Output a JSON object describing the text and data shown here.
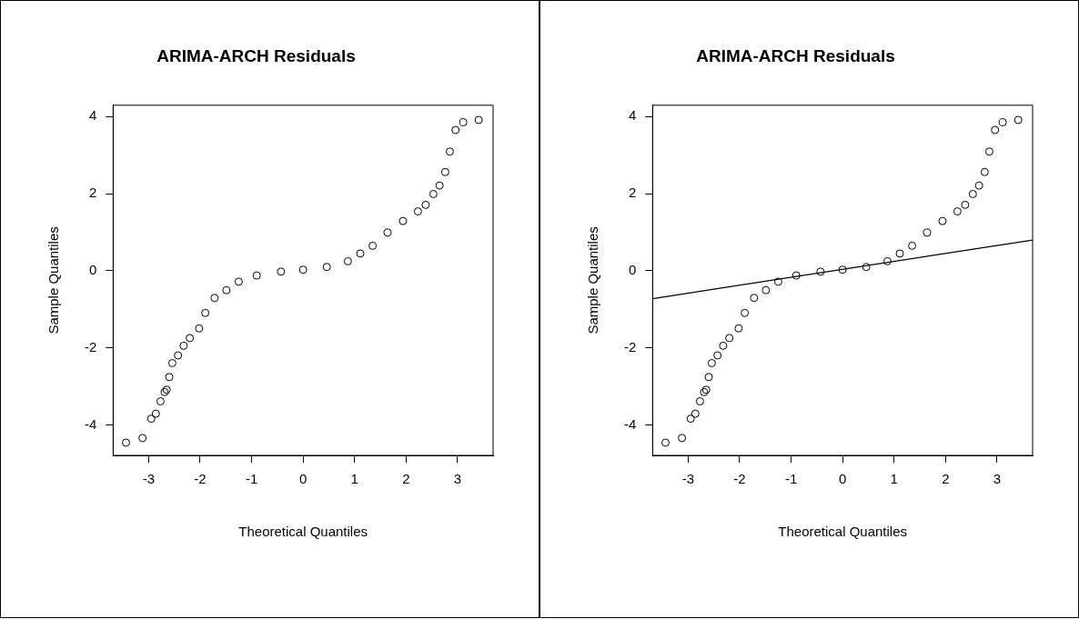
{
  "chart_data": [
    {
      "type": "scatter",
      "title": "ARIMA-ARCH Residuals",
      "xlabel": "Theoretical Quantiles",
      "ylabel": "Sample Quantiles",
      "color": "#000000",
      "marker": "circle",
      "grid": false,
      "legend": false,
      "x": [
        -3.44,
        -3.12,
        -2.95,
        -2.86,
        -2.77,
        -2.69,
        -2.65,
        -2.6,
        -2.54,
        -2.43,
        -2.32,
        -2.2,
        -2.02,
        -1.9,
        -1.72,
        -1.49,
        -1.25,
        -0.9,
        -0.43,
        0,
        0.46,
        0.87,
        1.11,
        1.35,
        1.64,
        1.94,
        2.23,
        2.38,
        2.53,
        2.65,
        2.76,
        2.85,
        2.96,
        3.11,
        3.41
      ],
      "values": [
        -4.45,
        -4.33,
        -3.83,
        -3.7,
        -3.38,
        -3.14,
        -3.08,
        -2.75,
        -2.39,
        -2.19,
        -1.94,
        -1.74,
        -1.49,
        -1.09,
        -0.7,
        -0.5,
        -0.28,
        -0.12,
        -0.02,
        0.03,
        0.1,
        0.25,
        0.45,
        0.65,
        0.99,
        1.29,
        1.54,
        1.71,
        1.99,
        2.21,
        2.56,
        3.09,
        3.65,
        3.85,
        3.91
      ],
      "xlim": [
        -3.69,
        3.69
      ],
      "ylim": [
        -4.78,
        4.29
      ],
      "xticks": [
        -3,
        -2,
        -1,
        0,
        1,
        2,
        3
      ],
      "yticks": [
        -4,
        -2,
        0,
        2,
        4
      ]
    },
    {
      "type": "scatter",
      "title": "ARIMA-ARCH Residuals",
      "xlabel": "Theoretical Quantiles",
      "ylabel": "Sample Quantiles",
      "marker": "circle",
      "grid": false,
      "legend": false,
      "series": [
        {
          "color": "#000000",
          "x": [
            -3.44,
            -3.12,
            -2.95,
            -2.86,
            -2.77,
            -2.69,
            -2.65,
            -2.6,
            -2.54,
            -2.43,
            -2.32,
            -2.2,
            -2.02,
            -1.9,
            -1.72,
            -1.49,
            -1.25,
            -0.9,
            -0.43,
            0,
            0.46,
            0.87,
            1.11,
            1.35,
            1.64,
            1.94,
            2.23,
            2.38,
            2.53,
            2.65,
            2.76,
            2.85,
            2.96,
            3.11,
            3.41
          ],
          "values": [
            -4.45,
            -4.33,
            -3.83,
            -3.7,
            -3.38,
            -3.14,
            -3.08,
            -2.75,
            -2.39,
            -2.19,
            -1.94,
            -1.74,
            -1.49,
            -1.09,
            -0.7,
            -0.5,
            -0.28,
            -0.12,
            -0.02,
            0.03,
            0.1,
            0.25,
            0.45,
            0.65,
            0.99,
            1.29,
            1.54,
            1.71,
            1.99,
            2.21,
            2.56,
            3.09,
            3.65,
            3.85,
            3.91
          ]
        },
        {
          "type": "line",
          "marker": "none",
          "color": "#000000",
          "x": [
            -3.69,
            3.69
          ],
          "values": [
            -0.72,
            0.8
          ]
        }
      ],
      "xlim": [
        -3.69,
        3.69
      ],
      "ylim": [
        -4.78,
        4.29
      ],
      "xticks": [
        -3,
        -2,
        -1,
        0,
        1,
        2,
        3
      ],
      "yticks": [
        -4,
        -2,
        0,
        2,
        4
      ]
    }
  ]
}
